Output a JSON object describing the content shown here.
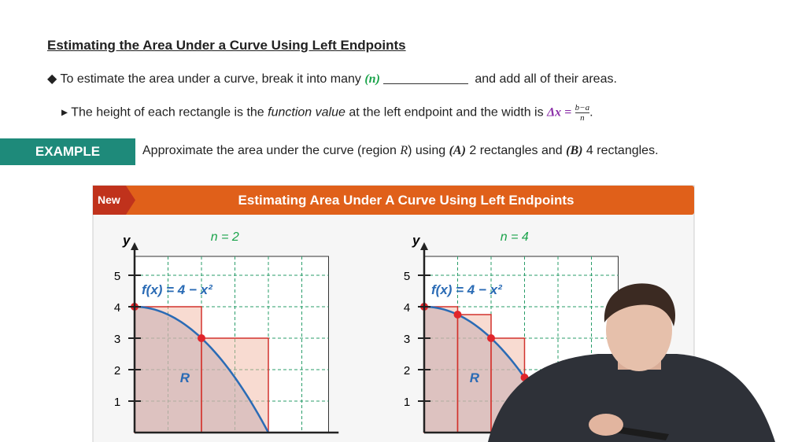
{
  "header": {
    "title": "Estimating the Area Under a Curve Using Left Endpoints"
  },
  "bullets": [
    {
      "parts": [
        "To estimate the area under a curve, break it into many",
        "(n)",
        "and add all of their areas."
      ]
    },
    {
      "parts": [
        "The height of each rectangle is the",
        "function value",
        "at the left endpoint and the width is",
        "Δx =",
        "b−a",
        "n",
        "."
      ]
    }
  ],
  "example": {
    "label": "EXAMPLE",
    "parts": [
      "Approximate the area under the curve (region",
      "R",
      ") using",
      "(A)",
      "2 rectangles and",
      "(B)",
      "4 rectangles."
    ]
  },
  "card": {
    "badge": "New",
    "title": "Estimating Area Under A Curve Using Left Endpoints",
    "plots": [
      {
        "label": "n = 2",
        "axis_label": "y",
        "yticks": [
          "1",
          "2",
          "3",
          "4",
          "5"
        ],
        "function": "f(x) = 4 − x²",
        "region": "R"
      },
      {
        "label": "n = 4",
        "axis_label": "y",
        "yticks": [
          "1",
          "2",
          "3",
          "4",
          "5"
        ],
        "function": "f(x) = 4 − x²",
        "region": "R"
      }
    ]
  }
}
